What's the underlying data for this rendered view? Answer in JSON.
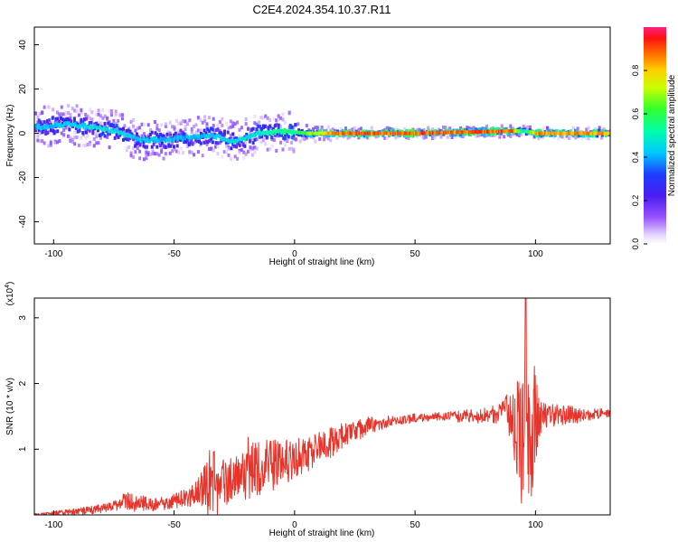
{
  "title": "C2E4.2024.354.10.37.R11",
  "colors": {
    "snr_line": "#e8332a",
    "ridge_core": "#e8102a",
    "frame": "#000000"
  },
  "chart_data": [
    {
      "type": "heatmap",
      "xlabel": "Height of straight line (km)",
      "ylabel": "Frequency (Hz)",
      "xlim": [
        -108,
        131
      ],
      "ylim": [
        -50,
        48
      ],
      "xticks": [
        -100,
        -50,
        0,
        50,
        100
      ],
      "yticks": [
        -40,
        -20,
        0,
        20,
        40
      ],
      "colorbar": {
        "label": "Normalized spectral amplitude",
        "range": [
          0.0,
          1.0
        ],
        "ticks": [
          0.0,
          0.2,
          0.4,
          0.6,
          0.8
        ],
        "colormap": "rainbow (magenta-blue-cyan-green-yellow-red)",
        "position": "right"
      },
      "ridge_frequency": [
        {
          "x": -105,
          "y": 3
        },
        {
          "x": -95,
          "y": 4
        },
        {
          "x": -85,
          "y": 3
        },
        {
          "x": -75,
          "y": 1
        },
        {
          "x": -65,
          "y": -3
        },
        {
          "x": -55,
          "y": -3
        },
        {
          "x": -45,
          "y": -2
        },
        {
          "x": -35,
          "y": -1
        },
        {
          "x": -25,
          "y": -4
        },
        {
          "x": -15,
          "y": 0
        },
        {
          "x": -5,
          "y": 1
        },
        {
          "x": 5,
          "y": 0
        },
        {
          "x": 15,
          "y": 0
        },
        {
          "x": 50,
          "y": 0
        },
        {
          "x": 90,
          "y": 1
        },
        {
          "x": 95,
          "y": 1
        },
        {
          "x": 100,
          "y": 0
        },
        {
          "x": 131,
          "y": 0
        }
      ],
      "ridge_amplitude": [
        {
          "x": -105,
          "y": 0.45
        },
        {
          "x": -80,
          "y": 0.5
        },
        {
          "x": -60,
          "y": 0.45
        },
        {
          "x": -40,
          "y": 0.45
        },
        {
          "x": -20,
          "y": 0.5
        },
        {
          "x": 0,
          "y": 0.6
        },
        {
          "x": 10,
          "y": 0.8
        },
        {
          "x": 20,
          "y": 0.95
        },
        {
          "x": 50,
          "y": 0.95
        },
        {
          "x": 90,
          "y": 0.95
        },
        {
          "x": 95,
          "y": 0.5
        },
        {
          "x": 100,
          "y": 0.9
        },
        {
          "x": 131,
          "y": 0.9
        }
      ],
      "grid": false
    },
    {
      "type": "line",
      "xlabel": "Height of straight line (km)",
      "ylabel": "SNR (10 * v/v)",
      "y_multiplier": "(x10",
      "y_multiplier_exp": "4",
      "y_multiplier_close": ")",
      "xlim": [
        -108,
        131
      ],
      "ylim": [
        0,
        3.3
      ],
      "xticks": [
        -100,
        -50,
        0,
        50,
        100
      ],
      "yticks": [
        1,
        2,
        3
      ],
      "series": [
        {
          "color": "#e8332a",
          "envelope": [
            {
              "x": -108,
              "y": 0.0
            },
            {
              "x": -90,
              "y": 0.05
            },
            {
              "x": -80,
              "y": 0.1
            },
            {
              "x": -70,
              "y": 0.2
            },
            {
              "x": -60,
              "y": 0.15
            },
            {
              "x": -50,
              "y": 0.2
            },
            {
              "x": -40,
              "y": 0.35
            },
            {
              "x": -35,
              "y": 0.5
            },
            {
              "x": -30,
              "y": 0.45
            },
            {
              "x": -20,
              "y": 0.65
            },
            {
              "x": -10,
              "y": 0.75
            },
            {
              "x": 0,
              "y": 0.85
            },
            {
              "x": 10,
              "y": 1.0
            },
            {
              "x": 20,
              "y": 1.2
            },
            {
              "x": 30,
              "y": 1.35
            },
            {
              "x": 40,
              "y": 1.43
            },
            {
              "x": 50,
              "y": 1.47
            },
            {
              "x": 60,
              "y": 1.5
            },
            {
              "x": 70,
              "y": 1.5
            },
            {
              "x": 80,
              "y": 1.52
            },
            {
              "x": 88,
              "y": 1.55
            },
            {
              "x": 93,
              "y": 1.4
            },
            {
              "x": 96,
              "y": 1.2
            },
            {
              "x": 100,
              "y": 1.5
            },
            {
              "x": 110,
              "y": 1.52
            },
            {
              "x": 120,
              "y": 1.53
            },
            {
              "x": 131,
              "y": 1.55
            }
          ],
          "noise": [
            {
              "x": -108,
              "y": 0.02
            },
            {
              "x": -75,
              "y": 0.08
            },
            {
              "x": -70,
              "y": 0.15
            },
            {
              "x": -55,
              "y": 0.1
            },
            {
              "x": -40,
              "y": 0.2
            },
            {
              "x": -35,
              "y": 0.55
            },
            {
              "x": -30,
              "y": 0.45
            },
            {
              "x": -25,
              "y": 0.3
            },
            {
              "x": -20,
              "y": 0.55
            },
            {
              "x": -15,
              "y": 0.45
            },
            {
              "x": 0,
              "y": 0.3
            },
            {
              "x": 20,
              "y": 0.2
            },
            {
              "x": 40,
              "y": 0.08
            },
            {
              "x": 60,
              "y": 0.06
            },
            {
              "x": 85,
              "y": 0.15
            },
            {
              "x": 90,
              "y": 0.4
            },
            {
              "x": 94,
              "y": 1.3
            },
            {
              "x": 97,
              "y": 1.4
            },
            {
              "x": 100,
              "y": 0.8
            },
            {
              "x": 103,
              "y": 0.2
            },
            {
              "x": 131,
              "y": 0.07
            }
          ],
          "peak": {
            "x": 96,
            "y": 3.3
          }
        }
      ],
      "grid": false
    }
  ]
}
